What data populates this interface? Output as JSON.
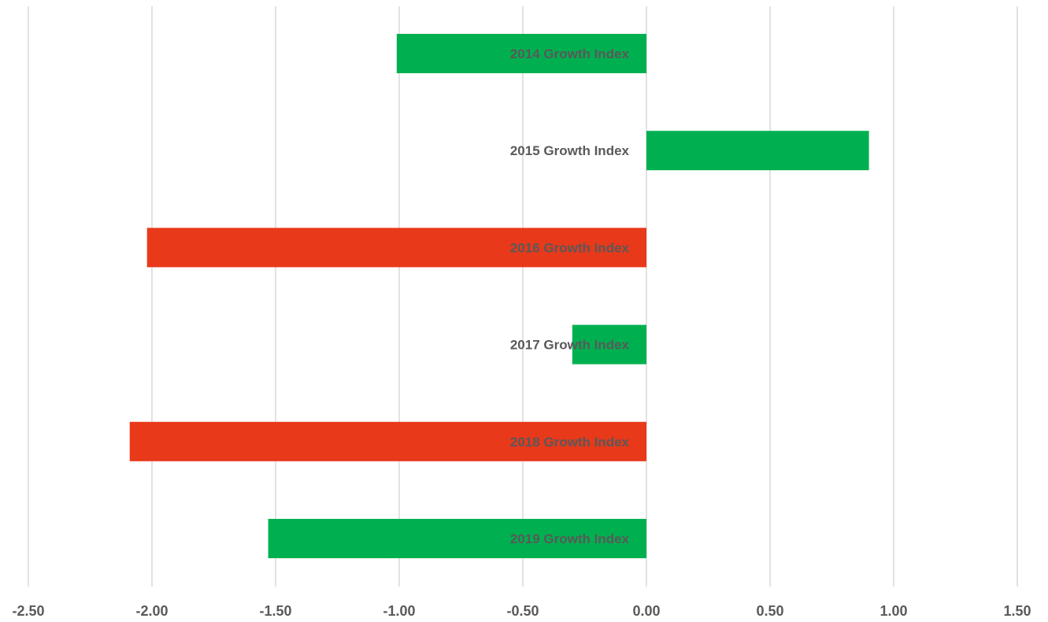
{
  "chart_data": {
    "type": "bar",
    "orientation": "horizontal",
    "categories": [
      "2014 Growth Index",
      "2015 Growth Index",
      "2016 Growth Index",
      "2017 Growth Index",
      "2018 Growth Index",
      "2019 Growth Index"
    ],
    "values": [
      -1.01,
      0.9,
      -2.02,
      -0.3,
      -2.09,
      -1.53
    ],
    "bar_colors": [
      "#00b050",
      "#00b050",
      "#e8391a",
      "#00b050",
      "#e8391a",
      "#00b050"
    ],
    "xlim": [
      -2.5,
      1.5
    ],
    "xticks": [
      "-2.50",
      "-2.00",
      "-1.50",
      "-1.00",
      "-0.50",
      "0.00",
      "0.50",
      "1.00",
      "1.50"
    ],
    "grid": "vertical",
    "gridline_color": "#d9d9d9",
    "label_color": "#595959",
    "title": "",
    "xlabel": "",
    "ylabel": ""
  }
}
